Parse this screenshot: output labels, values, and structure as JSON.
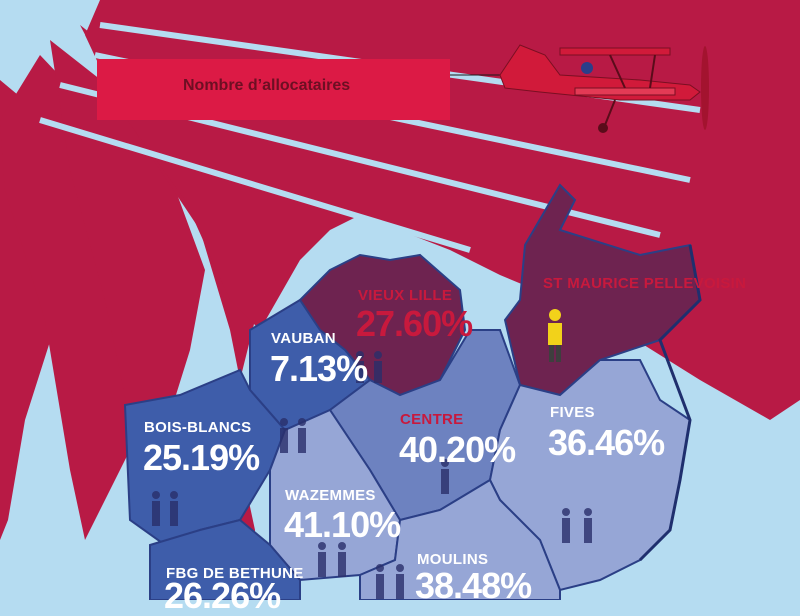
{
  "banner": {
    "text": "Nombre d’allocataires"
  },
  "districts": [
    {
      "id": "vieux-lille",
      "name": "VIEUX LILLE",
      "value": "27.60%"
    },
    {
      "id": "st-maurice",
      "name": "ST MAURICE PELLEVOISIN",
      "value": ""
    },
    {
      "id": "vauban",
      "name": "VAUBAN",
      "value": "7.13%"
    },
    {
      "id": "bois-blancs",
      "name": "BOIS-BLANCS",
      "value": "25.19%"
    },
    {
      "id": "centre",
      "name": "CENTRE",
      "value": "40.20%"
    },
    {
      "id": "fives",
      "name": "FIVES",
      "value": "36.46%"
    },
    {
      "id": "wazemmes",
      "name": "WAZEMMES",
      "value": "41.10%"
    },
    {
      "id": "fbg-de-bethune",
      "name": "FBG DE BETHUNE",
      "value": "26.26%"
    },
    {
      "id": "moulins",
      "name": "MOULINS",
      "value": "38.48%"
    }
  ],
  "colors": {
    "sky": "#b5dcf1",
    "ray": "#b81a45",
    "banner": "#dc1a45",
    "district_dark": "#3e5daa",
    "district_mid": "#6d82c0",
    "district_light": "#96a6d6",
    "district_maroon": "#6e2350"
  },
  "icons": [
    "biplane-icon",
    "person-pair-icon",
    "worker-icon"
  ]
}
